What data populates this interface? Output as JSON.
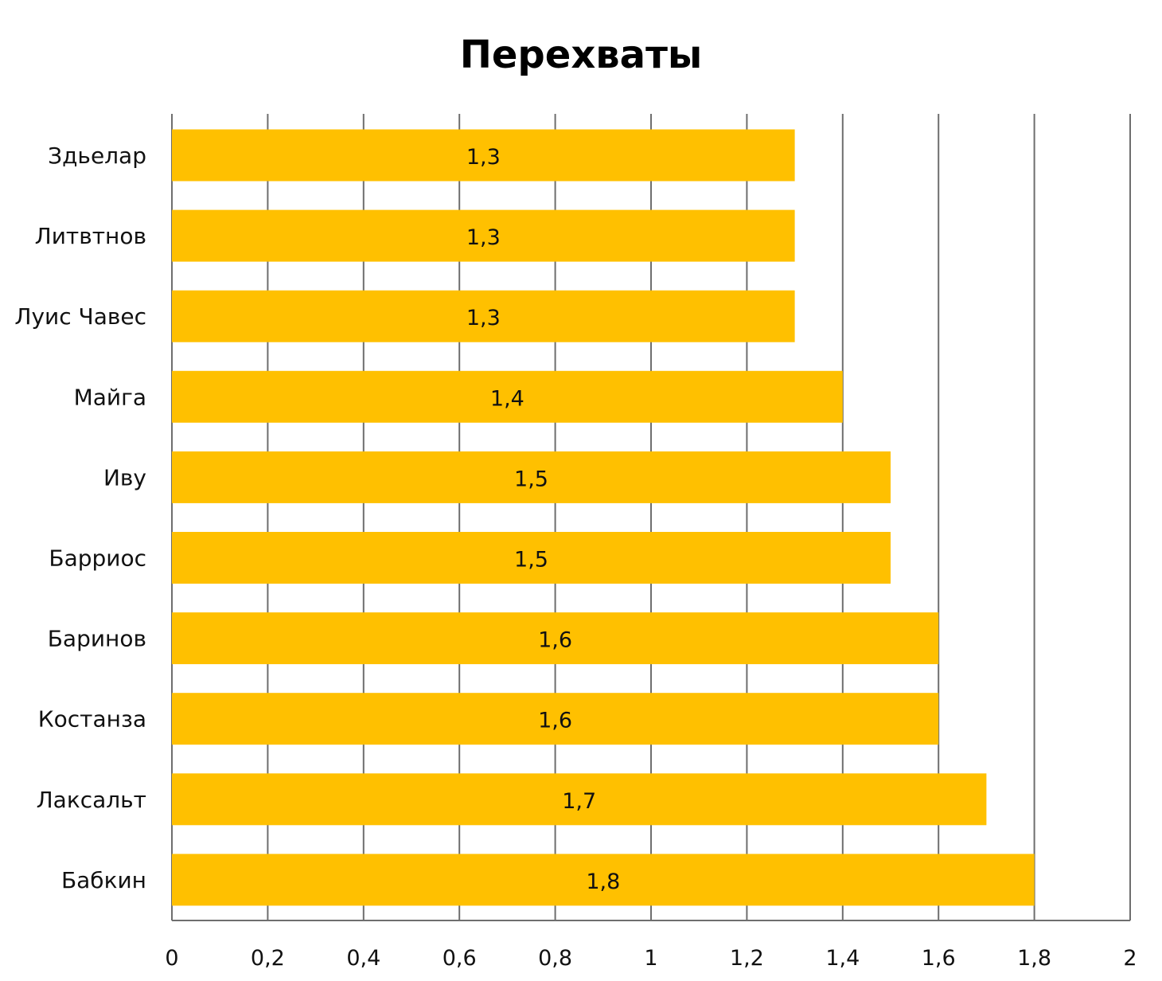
{
  "chart_data": {
    "type": "bar",
    "orientation": "horizontal",
    "title": "Перехваты",
    "xlabel": "",
    "ylabel": "",
    "categories": [
      "Здьелар",
      "Литвтнов",
      "Луис Чавес",
      "Майга",
      "Иву",
      "Барриос",
      "Баринов",
      "Костанза",
      "Лаксальт",
      "Бабкин"
    ],
    "values": [
      1.3,
      1.3,
      1.3,
      1.4,
      1.5,
      1.5,
      1.6,
      1.6,
      1.7,
      1.8
    ],
    "data_labels": [
      "1,3",
      "1,3",
      "1,3",
      "1,4",
      "1,5",
      "1,5",
      "1,6",
      "1,6",
      "1,7",
      "1,8"
    ],
    "xlim": [
      0,
      2
    ],
    "x_ticks": [
      "0",
      "0,2",
      "0,4",
      "0,6",
      "0,8",
      "1",
      "1,2",
      "1,4",
      "1,6",
      "1,8",
      "2"
    ],
    "grid": true,
    "legend": "none",
    "bar_color": "#FFC000"
  }
}
